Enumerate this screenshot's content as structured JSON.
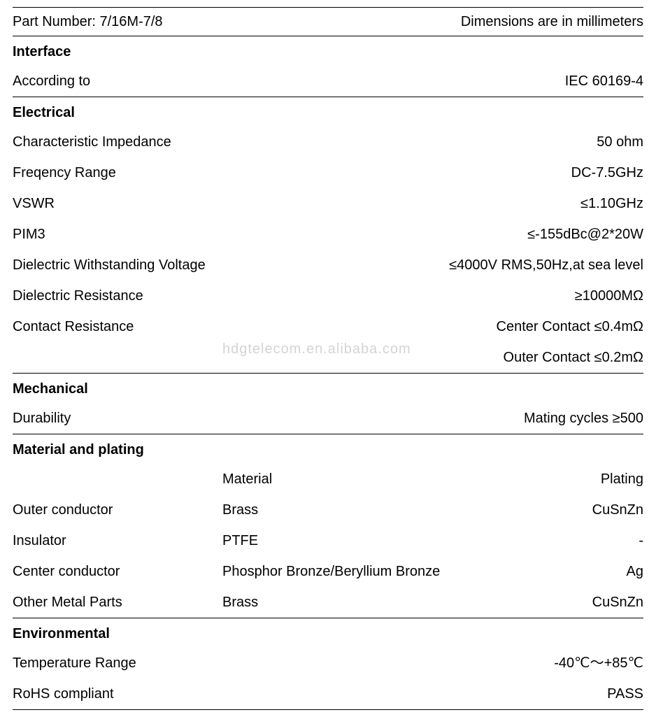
{
  "header": {
    "part_label": "Part Number: 7/16M-7/8",
    "dims_label": "Dimensions are in millimeters"
  },
  "interface": {
    "title": "Interface",
    "rows": [
      {
        "label": "According to",
        "value": "IEC 60169-4"
      }
    ]
  },
  "electrical": {
    "title": "Electrical",
    "rows": [
      {
        "label": "Characteristic Impedance",
        "value": "50 ohm"
      },
      {
        "label": "Freqency Range",
        "value": "DC-7.5GHz"
      },
      {
        "label": "VSWR",
        "value": "≤1.10GHz"
      },
      {
        "label": "PIM3",
        "value": "≤-155dBc@2*20W"
      },
      {
        "label": "Dielectric Withstanding Voltage",
        "value": "≤4000V RMS,50Hz,at sea level"
      },
      {
        "label": "Dielectric Resistance",
        "value": "≥10000MΩ"
      },
      {
        "label": "Contact Resistance",
        "value": "Center Contact ≤0.4mΩ"
      },
      {
        "label": "",
        "value": "Outer Contact ≤0.2mΩ"
      }
    ]
  },
  "mechanical": {
    "title": "Mechanical",
    "rows": [
      {
        "label": "Durability",
        "value": "Mating cycles ≥500"
      }
    ]
  },
  "material": {
    "title": "Material and plating",
    "col_headers": {
      "c1": "",
      "c2": "Material",
      "c3": "Plating"
    },
    "rows": [
      {
        "c1": "Outer conductor",
        "c2": "Brass",
        "c3": "CuSnZn"
      },
      {
        "c1": "Insulator",
        "c2": "PTFE",
        "c3": "-"
      },
      {
        "c1": "Center conductor",
        "c2": "Phosphor Bronze/Beryllium Bronze",
        "c3": "Ag"
      },
      {
        "c1": "Other Metal Parts",
        "c2": "Brass",
        "c3": "CuSnZn"
      }
    ]
  },
  "environmental": {
    "title": "Environmental",
    "rows": [
      {
        "label": "Temperature Range",
        "value": "-40℃～+85℃"
      },
      {
        "label": "RoHS compliant",
        "value": "PASS"
      }
    ]
  },
  "watermark": "hdgtelecom.en.alibaba.com"
}
